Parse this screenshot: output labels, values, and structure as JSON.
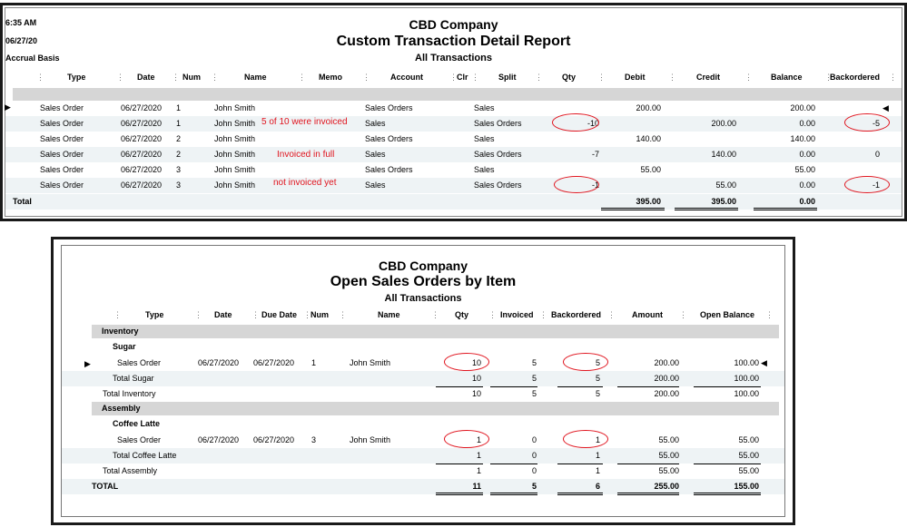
{
  "report1": {
    "time": "6:35 AM",
    "date": "06/27/20",
    "basis": "Accrual Basis",
    "company": "CBD Company",
    "title": "Custom Transaction Detail Report",
    "subtitle": "All Transactions",
    "columns": [
      "Type",
      "Date",
      "Num",
      "Name",
      "Memo",
      "Account",
      "Clr",
      "Split",
      "Qty",
      "Debit",
      "Credit",
      "Balance",
      "Backordered"
    ],
    "rows": [
      {
        "type": "Sales Order",
        "date": "06/27/2020",
        "num": "1",
        "name": "John Smith",
        "memo": "",
        "account": "Sales Orders",
        "clr": "",
        "split": "Sales",
        "qty": "",
        "debit": "200.00",
        "credit": "",
        "balance": "200.00",
        "backordered": ""
      },
      {
        "type": "Sales Order",
        "date": "06/27/2020",
        "num": "1",
        "name": "John Smith",
        "memo": "",
        "account": "Sales",
        "clr": "",
        "split": "Sales Orders",
        "qty": "-10",
        "debit": "",
        "credit": "200.00",
        "balance": "0.00",
        "backordered": "-5"
      },
      {
        "type": "Sales Order",
        "date": "06/27/2020",
        "num": "2",
        "name": "John Smith",
        "memo": "",
        "account": "Sales Orders",
        "clr": "",
        "split": "Sales",
        "qty": "",
        "debit": "140.00",
        "credit": "",
        "balance": "140.00",
        "backordered": ""
      },
      {
        "type": "Sales Order",
        "date": "06/27/2020",
        "num": "2",
        "name": "John Smith",
        "memo": "",
        "account": "Sales",
        "clr": "",
        "split": "Sales Orders",
        "qty": "-7",
        "debit": "",
        "credit": "140.00",
        "balance": "0.00",
        "backordered": "0"
      },
      {
        "type": "Sales Order",
        "date": "06/27/2020",
        "num": "3",
        "name": "John Smith",
        "memo": "",
        "account": "Sales Orders",
        "clr": "",
        "split": "Sales",
        "qty": "",
        "debit": "55.00",
        "credit": "",
        "balance": "55.00",
        "backordered": ""
      },
      {
        "type": "Sales Order",
        "date": "06/27/2020",
        "num": "3",
        "name": "John Smith",
        "memo": "",
        "account": "Sales",
        "clr": "",
        "split": "Sales Orders",
        "qty": "-1",
        "debit": "",
        "credit": "55.00",
        "balance": "0.00",
        "backordered": "-1"
      }
    ],
    "total": {
      "label": "Total",
      "debit": "395.00",
      "credit": "395.00",
      "balance": "0.00"
    },
    "notes": [
      "5 of 10 were invoiced",
      "Invoiced in full",
      "not invoiced yet"
    ]
  },
  "report2": {
    "company": "CBD Company",
    "title": "Open Sales Orders by Item",
    "subtitle": "All Transactions",
    "columns": [
      "Type",
      "Date",
      "Due Date",
      "Num",
      "Name",
      "Qty",
      "Invoiced",
      "Backordered",
      "Amount",
      "Open Balance"
    ],
    "inventory": {
      "label": "Inventory",
      "item": "Sugar",
      "row": {
        "type": "Sales Order",
        "date": "06/27/2020",
        "due": "06/27/2020",
        "num": "1",
        "name": "John Smith",
        "qty": "10",
        "invoiced": "5",
        "backordered": "5",
        "amount": "200.00",
        "open": "100.00"
      },
      "item_total": {
        "label": "Total Sugar",
        "qty": "10",
        "invoiced": "5",
        "backordered": "5",
        "amount": "200.00",
        "open": "100.00"
      },
      "group_total": {
        "label": "Total Inventory",
        "qty": "10",
        "invoiced": "5",
        "backordered": "5",
        "amount": "200.00",
        "open": "100.00"
      }
    },
    "assembly": {
      "label": "Assembly",
      "item": "Coffee Latte",
      "row": {
        "type": "Sales Order",
        "date": "06/27/2020",
        "due": "06/27/2020",
        "num": "3",
        "name": "John Smith",
        "qty": "1",
        "invoiced": "0",
        "backordered": "1",
        "amount": "55.00",
        "open": "55.00"
      },
      "item_total": {
        "label": "Total Coffee Latte",
        "qty": "1",
        "invoiced": "0",
        "backordered": "1",
        "amount": "55.00",
        "open": "55.00"
      },
      "group_total": {
        "label": "Total Assembly",
        "qty": "1",
        "invoiced": "0",
        "backordered": "1",
        "amount": "55.00",
        "open": "55.00"
      }
    },
    "total": {
      "label": "TOTAL",
      "qty": "11",
      "invoiced": "5",
      "backordered": "6",
      "amount": "255.00",
      "open": "155.00"
    }
  },
  "icons": {
    "row_pointer": "triangle-right-icon",
    "cell_pointer": "triangle-left-icon"
  },
  "colors": {
    "annotation": "#e0141e",
    "band": "#d6d6d6",
    "alt_row": "#eef3f5"
  }
}
